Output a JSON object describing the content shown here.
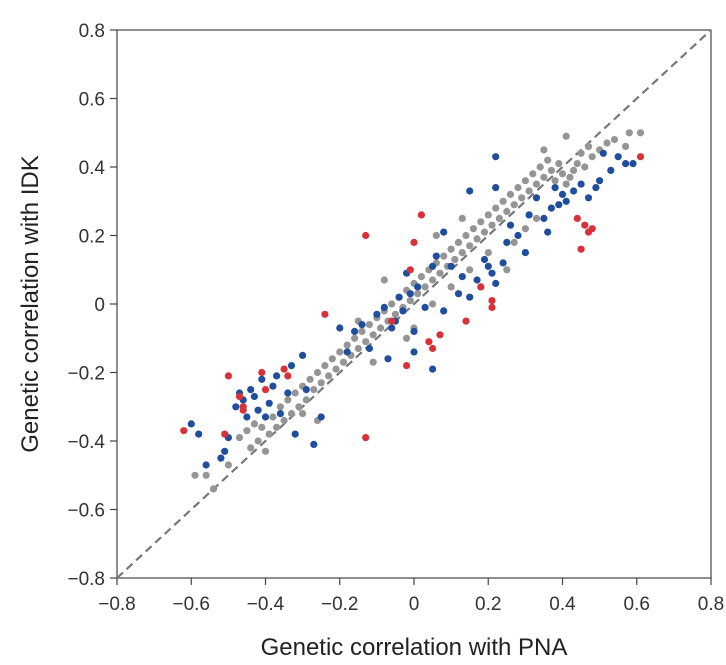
{
  "chart_data": {
    "type": "scatter",
    "title": "",
    "xlabel": "Genetic correlation with PNA",
    "ylabel": "Genetic correlation with IDK",
    "xlim": [
      -0.8,
      0.8
    ],
    "ylim": [
      -0.8,
      0.8
    ],
    "xticks": [
      -0.8,
      -0.6,
      -0.4,
      -0.2,
      0,
      0.2,
      0.4,
      0.6,
      0.8
    ],
    "yticks": [
      -0.8,
      -0.6,
      -0.4,
      -0.2,
      0,
      0.2,
      0.4,
      0.6,
      0.8
    ],
    "xtick_labels": [
      "−0.8",
      "−0.6",
      "−0.4",
      "−0.2",
      "0",
      "0.2",
      "0.4",
      "0.6",
      "0.8"
    ],
    "ytick_labels": [
      "−0.8",
      "−0.6",
      "−0.4",
      "−0.2",
      "0",
      "0.2",
      "0.4",
      "0.6",
      "0.8"
    ],
    "grid": false,
    "reference_line": {
      "style": "dashed",
      "color": "#777777",
      "from": [
        -0.8,
        -0.8
      ],
      "to": [
        0.8,
        0.8
      ]
    },
    "colors": {
      "gray": "#959595",
      "blue": "#1f4e9c",
      "red": "#d9313a"
    },
    "series": [
      {
        "color_key": "red",
        "points": [
          [
            -0.62,
            -0.37
          ],
          [
            -0.51,
            -0.38
          ],
          [
            -0.5,
            -0.21
          ],
          [
            -0.47,
            -0.27
          ],
          [
            -0.46,
            -0.3
          ],
          [
            -0.46,
            -0.31
          ],
          [
            -0.41,
            -0.2
          ],
          [
            -0.4,
            -0.25
          ],
          [
            -0.35,
            -0.19
          ],
          [
            -0.34,
            -0.21
          ],
          [
            -0.24,
            -0.03
          ],
          [
            -0.13,
            0.2
          ],
          [
            -0.13,
            -0.39
          ],
          [
            -0.06,
            -0.05
          ],
          [
            -0.01,
            0.1
          ],
          [
            -0.02,
            -0.18
          ],
          [
            0.0,
            0.18
          ],
          [
            0.02,
            0.26
          ],
          [
            0.04,
            -0.11
          ],
          [
            0.05,
            -0.13
          ],
          [
            0.07,
            -0.09
          ],
          [
            0.14,
            -0.05
          ],
          [
            0.18,
            0.05
          ],
          [
            0.21,
            0.01
          ],
          [
            0.21,
            -0.01
          ],
          [
            0.44,
            0.25
          ],
          [
            0.46,
            0.23
          ],
          [
            0.48,
            0.22
          ],
          [
            0.47,
            0.21
          ],
          [
            0.45,
            0.16
          ],
          [
            0.61,
            0.43
          ]
        ]
      },
      {
        "color_key": "blue",
        "points": [
          [
            -0.6,
            -0.35
          ],
          [
            -0.58,
            -0.38
          ],
          [
            -0.56,
            -0.47
          ],
          [
            -0.52,
            -0.45
          ],
          [
            -0.51,
            -0.43
          ],
          [
            -0.5,
            -0.39
          ],
          [
            -0.48,
            -0.3
          ],
          [
            -0.47,
            -0.26
          ],
          [
            -0.46,
            -0.28
          ],
          [
            -0.45,
            -0.33
          ],
          [
            -0.44,
            -0.25
          ],
          [
            -0.43,
            -0.27
          ],
          [
            -0.42,
            -0.31
          ],
          [
            -0.41,
            -0.22
          ],
          [
            -0.4,
            -0.33
          ],
          [
            -0.39,
            -0.29
          ],
          [
            -0.38,
            -0.24
          ],
          [
            -0.37,
            -0.21
          ],
          [
            -0.36,
            -0.32
          ],
          [
            -0.34,
            -0.26
          ],
          [
            -0.33,
            -0.18
          ],
          [
            -0.32,
            -0.38
          ],
          [
            -0.3,
            -0.15
          ],
          [
            -0.29,
            -0.25
          ],
          [
            -0.27,
            -0.41
          ],
          [
            -0.25,
            -0.33
          ],
          [
            -0.2,
            -0.07
          ],
          [
            -0.18,
            -0.14
          ],
          [
            -0.16,
            -0.08
          ],
          [
            -0.14,
            -0.06
          ],
          [
            -0.12,
            -0.13
          ],
          [
            -0.1,
            -0.03
          ],
          [
            -0.08,
            -0.01
          ],
          [
            -0.06,
            -0.07
          ],
          [
            -0.05,
            -0.05
          ],
          [
            -0.04,
            0.02
          ],
          [
            -0.03,
            -0.02
          ],
          [
            -0.02,
            0.09
          ],
          [
            -0.01,
            0.03
          ],
          [
            0.0,
            -0.08
          ],
          [
            0.01,
            0.05
          ],
          [
            0.03,
            -0.01
          ],
          [
            0.05,
            0.11
          ],
          [
            0.06,
            0.14
          ],
          [
            0.08,
            0.21
          ],
          [
            0.1,
            0.11
          ],
          [
            0.12,
            0.03
          ],
          [
            0.13,
            0.08
          ],
          [
            0.15,
            0.02
          ],
          [
            0.17,
            0.07
          ],
          [
            0.19,
            0.13
          ],
          [
            0.2,
            0.11
          ],
          [
            0.21,
            0.09
          ],
          [
            0.22,
            0.06
          ],
          [
            0.24,
            0.12
          ],
          [
            0.25,
            0.18
          ],
          [
            0.26,
            0.23
          ],
          [
            0.28,
            0.2
          ],
          [
            0.3,
            0.15
          ],
          [
            0.31,
            0.26
          ],
          [
            0.33,
            0.31
          ],
          [
            0.35,
            0.25
          ],
          [
            0.36,
            0.21
          ],
          [
            0.37,
            0.28
          ],
          [
            0.38,
            0.34
          ],
          [
            0.39,
            0.29
          ],
          [
            0.4,
            0.32
          ],
          [
            0.41,
            0.3
          ],
          [
            0.43,
            0.33
          ],
          [
            0.45,
            0.35
          ],
          [
            0.47,
            0.31
          ],
          [
            0.49,
            0.34
          ],
          [
            0.5,
            0.36
          ],
          [
            0.51,
            0.44
          ],
          [
            0.53,
            0.39
          ],
          [
            0.55,
            0.43
          ],
          [
            0.57,
            0.41
          ],
          [
            0.59,
            0.41
          ],
          [
            0.22,
            0.43
          ],
          [
            0.15,
            0.33
          ],
          [
            0.22,
            0.34
          ],
          [
            0.08,
            -0.02
          ],
          [
            0.0,
            -0.14
          ],
          [
            0.05,
            -0.19
          ],
          [
            -0.07,
            -0.16
          ]
        ]
      },
      {
        "color_key": "gray",
        "points": [
          [
            -0.59,
            -0.5
          ],
          [
            -0.56,
            -0.5
          ],
          [
            -0.54,
            -0.54
          ],
          [
            -0.5,
            -0.47
          ],
          [
            -0.47,
            -0.39
          ],
          [
            -0.45,
            -0.37
          ],
          [
            -0.44,
            -0.42
          ],
          [
            -0.43,
            -0.35
          ],
          [
            -0.42,
            -0.4
          ],
          [
            -0.41,
            -0.36
          ],
          [
            -0.4,
            -0.43
          ],
          [
            -0.39,
            -0.38
          ],
          [
            -0.38,
            -0.33
          ],
          [
            -0.37,
            -0.36
          ],
          [
            -0.36,
            -0.3
          ],
          [
            -0.35,
            -0.34
          ],
          [
            -0.34,
            -0.28
          ],
          [
            -0.33,
            -0.32
          ],
          [
            -0.32,
            -0.26
          ],
          [
            -0.31,
            -0.3
          ],
          [
            -0.3,
            -0.24
          ],
          [
            -0.29,
            -0.28
          ],
          [
            -0.28,
            -0.22
          ],
          [
            -0.27,
            -0.25
          ],
          [
            -0.26,
            -0.2
          ],
          [
            -0.25,
            -0.23
          ],
          [
            -0.24,
            -0.18
          ],
          [
            -0.23,
            -0.21
          ],
          [
            -0.22,
            -0.16
          ],
          [
            -0.21,
            -0.19
          ],
          [
            -0.2,
            -0.14
          ],
          [
            -0.19,
            -0.17
          ],
          [
            -0.18,
            -0.12
          ],
          [
            -0.17,
            -0.15
          ],
          [
            -0.16,
            -0.1
          ],
          [
            -0.15,
            -0.13
          ],
          [
            -0.14,
            -0.08
          ],
          [
            -0.13,
            -0.11
          ],
          [
            -0.12,
            -0.06
          ],
          [
            -0.11,
            -0.09
          ],
          [
            -0.1,
            -0.04
          ],
          [
            -0.09,
            -0.07
          ],
          [
            -0.08,
            -0.02
          ],
          [
            -0.07,
            -0.05
          ],
          [
            -0.06,
            0.0
          ],
          [
            -0.05,
            -0.03
          ],
          [
            -0.04,
            0.02
          ],
          [
            -0.03,
            -0.01
          ],
          [
            -0.02,
            0.04
          ],
          [
            -0.01,
            0.01
          ],
          [
            0.0,
            0.06
          ],
          [
            0.01,
            0.03
          ],
          [
            0.02,
            0.08
          ],
          [
            0.03,
            0.05
          ],
          [
            0.04,
            0.1
          ],
          [
            0.05,
            0.07
          ],
          [
            0.06,
            0.12
          ],
          [
            0.07,
            0.09
          ],
          [
            0.08,
            0.14
          ],
          [
            0.09,
            0.11
          ],
          [
            0.1,
            0.16
          ],
          [
            0.11,
            0.13
          ],
          [
            0.12,
            0.18
          ],
          [
            0.13,
            0.15
          ],
          [
            0.14,
            0.2
          ],
          [
            0.15,
            0.17
          ],
          [
            0.16,
            0.22
          ],
          [
            0.17,
            0.19
          ],
          [
            0.18,
            0.24
          ],
          [
            0.19,
            0.21
          ],
          [
            0.2,
            0.26
          ],
          [
            0.21,
            0.23
          ],
          [
            0.22,
            0.28
          ],
          [
            0.23,
            0.25
          ],
          [
            0.24,
            0.3
          ],
          [
            0.25,
            0.27
          ],
          [
            0.26,
            0.32
          ],
          [
            0.27,
            0.29
          ],
          [
            0.28,
            0.34
          ],
          [
            0.29,
            0.31
          ],
          [
            0.3,
            0.36
          ],
          [
            0.31,
            0.33
          ],
          [
            0.32,
            0.38
          ],
          [
            0.33,
            0.35
          ],
          [
            0.34,
            0.4
          ],
          [
            0.35,
            0.37
          ],
          [
            0.36,
            0.42
          ],
          [
            0.37,
            0.39
          ],
          [
            0.38,
            0.36
          ],
          [
            0.39,
            0.41
          ],
          [
            0.4,
            0.38
          ],
          [
            0.41,
            0.35
          ],
          [
            0.42,
            0.37
          ],
          [
            0.43,
            0.39
          ],
          [
            0.44,
            0.41
          ],
          [
            0.45,
            0.44
          ],
          [
            0.46,
            0.4
          ],
          [
            0.47,
            0.46
          ],
          [
            0.48,
            0.43
          ],
          [
            0.5,
            0.45
          ],
          [
            0.52,
            0.47
          ],
          [
            0.54,
            0.48
          ],
          [
            0.57,
            0.46
          ],
          [
            0.58,
            0.5
          ],
          [
            0.61,
            0.5
          ],
          [
            0.41,
            0.49
          ],
          [
            0.35,
            0.45
          ],
          [
            0.06,
            0.2
          ],
          [
            0.13,
            0.25
          ],
          [
            -0.08,
            0.07
          ],
          [
            0.0,
            -0.07
          ],
          [
            -0.11,
            -0.17
          ],
          [
            -0.3,
            -0.32
          ],
          [
            -0.26,
            -0.34
          ],
          [
            0.18,
            0.05
          ],
          [
            0.27,
            0.18
          ],
          [
            0.3,
            0.22
          ],
          [
            0.1,
            0.05
          ],
          [
            -0.02,
            -0.1
          ],
          [
            0.05,
            0.0
          ],
          [
            0.2,
            0.15
          ],
          [
            0.25,
            0.1
          ],
          [
            -0.15,
            -0.05
          ],
          [
            0.33,
            0.25
          ],
          [
            0.15,
            0.1
          ]
        ]
      }
    ]
  }
}
